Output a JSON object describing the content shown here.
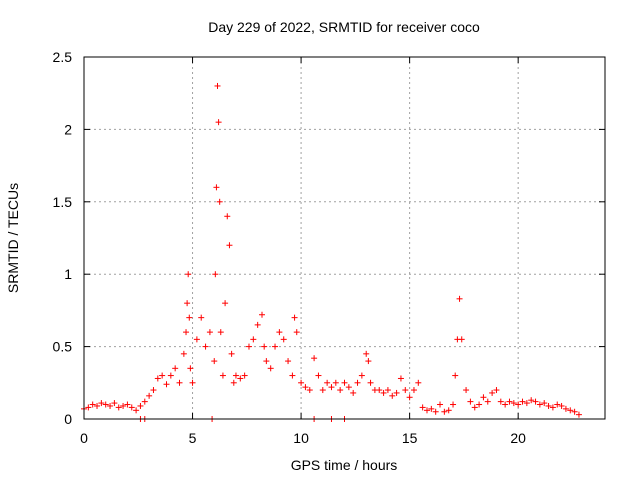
{
  "chart_data": {
    "type": "scatter",
    "title": "Day 229 of 2022, SRMTID for receiver coco",
    "xlabel": "GPS time / hours",
    "ylabel": "SRMTID / TECUs",
    "xlim": [
      0,
      24
    ],
    "ylim": [
      0,
      2.5
    ],
    "xticks": [
      0,
      5,
      10,
      15,
      20
    ],
    "xtick_labels": [
      "0",
      "5",
      "10",
      "15",
      "20"
    ],
    "yticks": [
      0,
      0.5,
      1,
      1.5,
      2,
      2.5
    ],
    "ytick_labels": [
      "0",
      "0.5",
      "1",
      "1.5",
      "2",
      "2.5"
    ],
    "grid": true,
    "marker": "+",
    "color": "#ff0000",
    "series": [
      {
        "name": "SRMTID",
        "x": [
          0.0,
          0.2,
          0.4,
          0.6,
          0.8,
          1.0,
          1.2,
          1.4,
          1.6,
          1.8,
          2.0,
          2.2,
          2.4,
          2.6,
          2.8,
          3.0,
          3.2,
          3.4,
          3.6,
          3.8,
          4.0,
          4.2,
          4.4,
          4.6,
          4.7,
          4.75,
          4.8,
          4.85,
          4.9,
          5.0,
          5.2,
          5.4,
          5.6,
          5.8,
          6.0,
          6.05,
          6.1,
          6.15,
          6.2,
          6.25,
          6.3,
          6.4,
          6.5,
          6.6,
          6.7,
          6.8,
          6.9,
          7.0,
          7.2,
          7.4,
          7.6,
          7.8,
          8.0,
          8.2,
          8.3,
          8.4,
          8.6,
          8.8,
          9.0,
          9.2,
          9.4,
          9.6,
          9.7,
          9.8,
          10.0,
          10.2,
          10.4,
          10.6,
          10.8,
          11.0,
          11.2,
          11.4,
          11.6,
          11.8,
          12.0,
          12.2,
          12.4,
          12.6,
          12.8,
          13.0,
          13.1,
          13.2,
          13.4,
          13.6,
          13.8,
          14.0,
          14.2,
          14.4,
          14.6,
          14.8,
          15.0,
          15.2,
          15.4,
          15.6,
          15.8,
          16.0,
          16.2,
          16.4,
          16.6,
          16.8,
          17.0,
          17.1,
          17.2,
          17.3,
          17.4,
          17.6,
          17.8,
          18.0,
          18.2,
          18.4,
          18.6,
          18.8,
          19.0,
          19.2,
          19.4,
          19.6,
          19.8,
          20.0,
          20.2,
          20.4,
          20.6,
          20.8,
          21.0,
          21.2,
          21.4,
          21.6,
          21.8,
          22.0,
          22.2,
          22.4,
          22.6,
          22.8,
          2.6,
          2.8,
          5.9,
          10.6,
          11.4,
          12.0
        ],
        "y": [
          0.07,
          0.08,
          0.1,
          0.09,
          0.11,
          0.1,
          0.09,
          0.11,
          0.08,
          0.09,
          0.1,
          0.08,
          0.06,
          0.09,
          0.12,
          0.16,
          0.2,
          0.28,
          0.3,
          0.24,
          0.3,
          0.35,
          0.25,
          0.45,
          0.6,
          0.8,
          1.0,
          0.7,
          0.35,
          0.25,
          0.55,
          0.7,
          0.5,
          0.6,
          0.4,
          1.0,
          1.6,
          2.3,
          2.05,
          1.5,
          0.6,
          0.3,
          0.8,
          1.4,
          1.2,
          0.45,
          0.25,
          0.3,
          0.28,
          0.3,
          0.5,
          0.55,
          0.65,
          0.72,
          0.5,
          0.4,
          0.35,
          0.5,
          0.6,
          0.55,
          0.4,
          0.3,
          0.7,
          0.6,
          0.25,
          0.22,
          0.2,
          0.42,
          0.3,
          0.2,
          0.25,
          0.22,
          0.25,
          0.2,
          0.25,
          0.22,
          0.18,
          0.25,
          0.3,
          0.45,
          0.4,
          0.25,
          0.2,
          0.2,
          0.18,
          0.2,
          0.16,
          0.18,
          0.28,
          0.2,
          0.15,
          0.2,
          0.25,
          0.08,
          0.06,
          0.07,
          0.05,
          0.1,
          0.05,
          0.06,
          0.1,
          0.3,
          0.55,
          0.83,
          0.55,
          0.2,
          0.12,
          0.08,
          0.1,
          0.15,
          0.12,
          0.18,
          0.2,
          0.12,
          0.1,
          0.12,
          0.11,
          0.1,
          0.12,
          0.11,
          0.13,
          0.12,
          0.1,
          0.11,
          0.09,
          0.08,
          0.1,
          0.09,
          0.07,
          0.06,
          0.05,
          0.03,
          0.0,
          0.0,
          0.0,
          0.0,
          0.0,
          0.0
        ]
      }
    ]
  }
}
